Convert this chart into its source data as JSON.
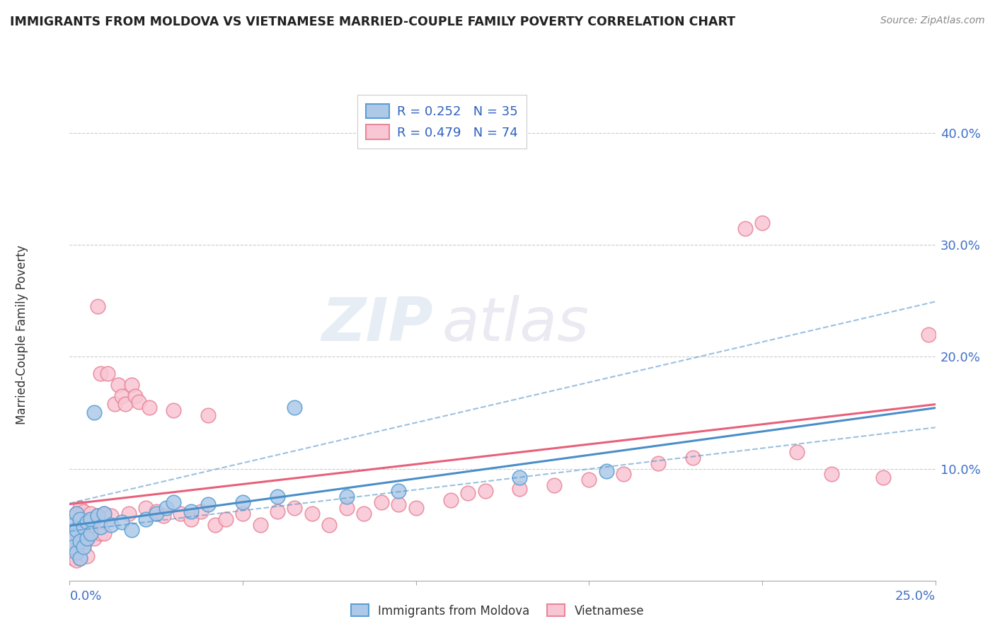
{
  "title": "IMMIGRANTS FROM MOLDOVA VS VIETNAMESE MARRIED-COUPLE FAMILY POVERTY CORRELATION CHART",
  "source": "Source: ZipAtlas.com",
  "ylabel": "Married-Couple Family Poverty",
  "moldova_R": 0.252,
  "moldova_N": 35,
  "vietnamese_R": 0.479,
  "vietnamese_N": 74,
  "moldova_fill": "#aec9e8",
  "vietnamese_fill": "#f9c6d4",
  "moldova_edge": "#5a9fd4",
  "vietnamese_edge": "#e8879a",
  "moldova_line": "#4a8ec8",
  "vietnamese_line": "#e8607a",
  "xlim": [
    0.0,
    0.25
  ],
  "ylim": [
    0.0,
    0.44
  ],
  "ytick_vals": [
    0.1,
    0.2,
    0.3,
    0.4
  ],
  "ytick_labels": [
    "10.0%",
    "20.0%",
    "30.0%",
    "40.0%"
  ],
  "legend_R_color": "#3060c0",
  "legend_N_color": "#e03060",
  "watermark_zip_color": "#c8d8e8",
  "watermark_atlas_color": "#d0c8e0",
  "moldova_x": [
    0.001,
    0.001,
    0.001,
    0.002,
    0.002,
    0.002,
    0.003,
    0.003,
    0.003,
    0.004,
    0.004,
    0.005,
    0.005,
    0.006,
    0.006,
    0.007,
    0.008,
    0.009,
    0.01,
    0.012,
    0.015,
    0.018,
    0.022,
    0.025,
    0.028,
    0.03,
    0.035,
    0.04,
    0.05,
    0.06,
    0.065,
    0.08,
    0.095,
    0.13,
    0.155
  ],
  "moldova_y": [
    0.05,
    0.04,
    0.03,
    0.06,
    0.045,
    0.025,
    0.055,
    0.035,
    0.02,
    0.048,
    0.03,
    0.052,
    0.038,
    0.055,
    0.042,
    0.15,
    0.058,
    0.048,
    0.06,
    0.05,
    0.052,
    0.045,
    0.055,
    0.06,
    0.065,
    0.07,
    0.062,
    0.068,
    0.07,
    0.075,
    0.155,
    0.075,
    0.08,
    0.092,
    0.098
  ],
  "vietnamese_x": [
    0.001,
    0.001,
    0.001,
    0.002,
    0.002,
    0.002,
    0.002,
    0.003,
    0.003,
    0.003,
    0.003,
    0.004,
    0.004,
    0.004,
    0.005,
    0.005,
    0.005,
    0.006,
    0.006,
    0.007,
    0.007,
    0.008,
    0.008,
    0.009,
    0.009,
    0.01,
    0.01,
    0.011,
    0.012,
    0.013,
    0.014,
    0.015,
    0.016,
    0.017,
    0.018,
    0.019,
    0.02,
    0.022,
    0.023,
    0.025,
    0.027,
    0.03,
    0.032,
    0.035,
    0.038,
    0.04,
    0.042,
    0.045,
    0.05,
    0.055,
    0.06,
    0.065,
    0.07,
    0.075,
    0.08,
    0.085,
    0.09,
    0.095,
    0.1,
    0.11,
    0.115,
    0.12,
    0.13,
    0.14,
    0.15,
    0.16,
    0.17,
    0.18,
    0.195,
    0.2,
    0.21,
    0.22,
    0.235,
    0.248
  ],
  "vietnamese_y": [
    0.045,
    0.035,
    0.02,
    0.06,
    0.042,
    0.028,
    0.018,
    0.065,
    0.048,
    0.032,
    0.02,
    0.062,
    0.045,
    0.03,
    0.055,
    0.038,
    0.022,
    0.06,
    0.04,
    0.055,
    0.038,
    0.245,
    0.058,
    0.185,
    0.042,
    0.06,
    0.042,
    0.185,
    0.058,
    0.158,
    0.175,
    0.165,
    0.158,
    0.06,
    0.175,
    0.165,
    0.16,
    0.065,
    0.155,
    0.062,
    0.058,
    0.152,
    0.06,
    0.055,
    0.062,
    0.148,
    0.05,
    0.055,
    0.06,
    0.05,
    0.062,
    0.065,
    0.06,
    0.05,
    0.065,
    0.06,
    0.07,
    0.068,
    0.065,
    0.072,
    0.078,
    0.08,
    0.082,
    0.085,
    0.09,
    0.095,
    0.105,
    0.11,
    0.315,
    0.32,
    0.115,
    0.095,
    0.092,
    0.22
  ]
}
